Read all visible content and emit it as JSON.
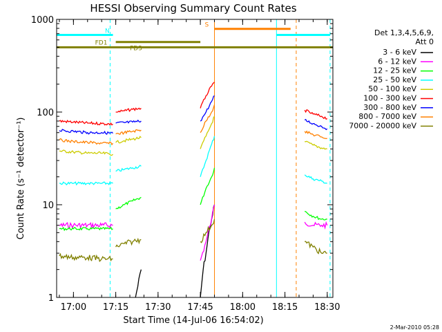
{
  "chart_data": {
    "type": "line",
    "title": "HESSI Observing Summary Count Rates",
    "xlabel": "Start Time (14-Jul-06 16:54:02)",
    "ylabel": "Count Rate (s⁻¹ detector⁻¹)",
    "y_scale": "log",
    "ylim": [
      1,
      1000
    ],
    "xlim": [
      "16:54:02",
      "18:32:00"
    ],
    "x_ticks": [
      "17:00",
      "17:15",
      "17:30",
      "17:45",
      "18:00",
      "18:15",
      "18:30"
    ],
    "y_ticks": [
      "1",
      "10",
      "100",
      "1000"
    ],
    "legend": {
      "placement": "right",
      "header": [
        "Det 1,3,4,5,6,9,",
        "Att 0"
      ]
    },
    "footer_date": "2-Mar-2010 05:28",
    "series": [
      {
        "name": "3 - 6 keV",
        "color": "#000000",
        "segments": [
          {
            "x": [
              "17:22",
              "17:24"
            ],
            "y": [
              1.0,
              2.0
            ]
          },
          {
            "x": [
              "17:45",
              "17:46",
              "17:47",
              "17:48",
              "17:49",
              "17:50"
            ],
            "y": [
              1.0,
              2.0,
              3.0,
              5.0,
              7.0,
              10.0
            ]
          }
        ]
      },
      {
        "name": "6 - 12 keV",
        "color": "#ff00ff",
        "segments": [
          {
            "x": [
              "16:55",
              "17:00",
              "17:05",
              "17:10",
              "17:14"
            ],
            "y": [
              6.0,
              6.0,
              6.0,
              6.0,
              6.0
            ]
          },
          {
            "x": [
              "17:45",
              "17:47",
              "17:49",
              "17:50"
            ],
            "y": [
              2.5,
              4.0,
              7.0,
              10.0
            ]
          },
          {
            "x": [
              "18:22",
              "18:25",
              "18:28",
              "18:30"
            ],
            "y": [
              6.5,
              6.0,
              6.0,
              6.0
            ]
          }
        ]
      },
      {
        "name": "12 - 25 keV",
        "color": "#00ff00",
        "segments": [
          {
            "x": [
              "16:55",
              "17:00",
              "17:05",
              "17:10",
              "17:14"
            ],
            "y": [
              5.5,
              5.5,
              5.5,
              5.5,
              5.5
            ]
          },
          {
            "x": [
              "17:15",
              "17:18",
              "17:21",
              "17:24"
            ],
            "y": [
              9.0,
              10.0,
              11.0,
              12.0
            ]
          },
          {
            "x": [
              "17:45",
              "17:47",
              "17:49",
              "17:50"
            ],
            "y": [
              10.0,
              15.0,
              20.0,
              25.0
            ]
          },
          {
            "x": [
              "18:22",
              "18:25",
              "18:28",
              "18:30"
            ],
            "y": [
              8.5,
              7.5,
              7.0,
              7.0
            ]
          }
        ]
      },
      {
        "name": "25 - 50 keV",
        "color": "#00ffff",
        "segments": [
          {
            "x": [
              "16:55",
              "17:00",
              "17:05",
              "17:10",
              "17:14"
            ],
            "y": [
              17.0,
              17.0,
              17.0,
              17.0,
              17.0
            ]
          },
          {
            "x": [
              "17:15",
              "17:18",
              "17:21",
              "17:24"
            ],
            "y": [
              23.0,
              24.0,
              25.0,
              26.0
            ]
          },
          {
            "x": [
              "17:45",
              "17:47",
              "17:49",
              "17:50"
            ],
            "y": [
              20.0,
              30.0,
              45.0,
              55.0
            ]
          },
          {
            "x": [
              "18:22",
              "18:25",
              "18:28",
              "18:30"
            ],
            "y": [
              21.0,
              19.0,
              18.0,
              17.0
            ]
          }
        ]
      },
      {
        "name": "50 - 100 keV",
        "color": "#cccc00",
        "segments": [
          {
            "x": [
              "16:55",
              "17:00",
              "17:05",
              "17:10",
              "17:14"
            ],
            "y": [
              38.0,
              37.0,
              36.0,
              36.0,
              35.0
            ]
          },
          {
            "x": [
              "17:15",
              "17:18",
              "17:21",
              "17:24"
            ],
            "y": [
              47.0,
              49.0,
              51.0,
              53.0
            ]
          },
          {
            "x": [
              "17:45",
              "17:47",
              "17:49",
              "17:50"
            ],
            "y": [
              40.0,
              55.0,
              75.0,
              90.0
            ]
          },
          {
            "x": [
              "18:22",
              "18:25",
              "18:28",
              "18:30"
            ],
            "y": [
              48.0,
              44.0,
              41.0,
              40.0
            ]
          }
        ]
      },
      {
        "name": "100 - 300 keV",
        "color": "#ff0000",
        "segments": [
          {
            "x": [
              "16:55",
              "17:00",
              "17:05",
              "17:10",
              "17:14"
            ],
            "y": [
              80.0,
              78.0,
              76.0,
              75.0,
              74.0
            ]
          },
          {
            "x": [
              "17:15",
              "17:18",
              "17:21",
              "17:24"
            ],
            "y": [
              100.0,
              103.0,
              107.0,
              110.0
            ]
          },
          {
            "x": [
              "17:45",
              "17:47",
              "17:49",
              "17:50"
            ],
            "y": [
              110.0,
              150.0,
              190.0,
              210.0
            ]
          },
          {
            "x": [
              "18:22",
              "18:25",
              "18:28",
              "18:30"
            ],
            "y": [
              105.0,
              95.0,
              90.0,
              85.0
            ]
          }
        ]
      },
      {
        "name": "300 - 800 keV",
        "color": "#0000ff",
        "segments": [
          {
            "x": [
              "16:55",
              "17:00",
              "17:05",
              "17:10",
              "17:14"
            ],
            "y": [
              63.0,
              62.0,
              60.0,
              60.0,
              59.0
            ]
          },
          {
            "x": [
              "17:15",
              "17:18",
              "17:21",
              "17:24"
            ],
            "y": [
              76.0,
              77.0,
              78.0,
              80.0
            ]
          },
          {
            "x": [
              "17:45",
              "17:47",
              "17:49",
              "17:50"
            ],
            "y": [
              80.0,
              100.0,
              130.0,
              150.0
            ]
          },
          {
            "x": [
              "18:22",
              "18:25",
              "18:28",
              "18:30"
            ],
            "y": [
              82.0,
              75.0,
              70.0,
              66.0
            ]
          }
        ]
      },
      {
        "name": "800 - 7000 keV",
        "color": "#ff8000",
        "segments": [
          {
            "x": [
              "16:55",
              "17:00",
              "17:05",
              "17:10",
              "17:14"
            ],
            "y": [
              50.0,
              48.0,
              47.0,
              46.0,
              46.0
            ]
          },
          {
            "x": [
              "17:15",
              "17:18",
              "17:21",
              "17:24"
            ],
            "y": [
              58.0,
              60.0,
              62.0,
              64.0
            ]
          },
          {
            "x": [
              "17:45",
              "17:47",
              "17:49",
              "17:50"
            ],
            "y": [
              60.0,
              80.0,
              100.0,
              120.0
            ]
          },
          {
            "x": [
              "18:22",
              "18:25",
              "18:28",
              "18:30"
            ],
            "y": [
              62.0,
              57.0,
              54.0,
              52.0
            ]
          }
        ]
      },
      {
        "name": "7000 - 20000 keV",
        "color": "#808000",
        "segments": [
          {
            "x": [
              "16:55",
              "17:00",
              "17:05",
              "17:10",
              "17:14"
            ],
            "y": [
              2.8,
              2.7,
              2.7,
              2.6,
              2.6
            ]
          },
          {
            "x": [
              "17:15",
              "17:18",
              "17:21",
              "17:24"
            ],
            "y": [
              3.5,
              3.8,
              4.0,
              4.2
            ]
          },
          {
            "x": [
              "17:45",
              "17:47",
              "17:49",
              "17:50"
            ],
            "y": [
              4.0,
              5.0,
              6.0,
              7.0
            ]
          },
          {
            "x": [
              "18:22",
              "18:25",
              "18:28",
              "18:30"
            ],
            "y": [
              4.0,
              3.5,
              3.0,
              3.0
            ]
          }
        ]
      }
    ],
    "annotations": {
      "flags": [
        {
          "label": "N",
          "color": "#00ffff",
          "y": 680,
          "segments": [
            [
              "16:54:02",
              "17:14"
            ],
            [
              "18:12",
              "18:31"
            ]
          ]
        },
        {
          "label": "FD1",
          "color": "#808000",
          "y": 570,
          "segments": [
            [
              "17:15",
              "17:45"
            ]
          ]
        },
        {
          "label": "FD3",
          "color": "#808000",
          "y": 500,
          "segments": [
            [
              "16:54:02",
              "18:32:00"
            ]
          ]
        },
        {
          "label": "S",
          "color": "#ff8000",
          "y": 790,
          "segments": [
            [
              "17:50",
              "18:17"
            ]
          ]
        }
      ],
      "vlines": [
        {
          "x": "16:54:02",
          "color": "#00ffff",
          "style": "solid"
        },
        {
          "x": "17:13",
          "color": "#00ffff",
          "style": "dashed"
        },
        {
          "x": "17:50",
          "color": "#ff8000",
          "style": "solid"
        },
        {
          "x": "18:12",
          "color": "#00ffff",
          "style": "solid"
        },
        {
          "x": "18:19",
          "color": "#ff8000",
          "style": "dashed"
        },
        {
          "x": "18:31",
          "color": "#00ffff",
          "style": "dashed"
        }
      ]
    }
  }
}
